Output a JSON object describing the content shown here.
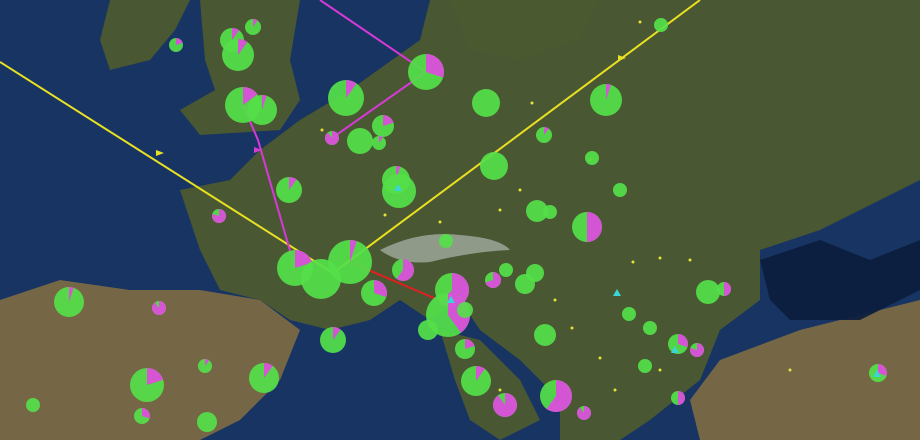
{
  "map": {
    "kind": "satellite",
    "region": "Europe",
    "colors": {
      "ocean": "#173463",
      "ocean_deep": "#0d1f3f",
      "land": "#4c5a30",
      "land_dry": "#7a6a45",
      "snow": "#d8dde0",
      "pie_primary": "#55e04a",
      "pie_secondary": "#e04adf",
      "route_yellow": "#e8e021",
      "route_magenta": "#d63ad6",
      "route_red": "#e02020",
      "point_yellow": "#e6e03a",
      "triangle_cyan": "#3ad6d6"
    },
    "marker_secondary_fractions": [
      0.1,
      0.1,
      0.1,
      0.2,
      0.15,
      0.05,
      0.1,
      0.3,
      0,
      0.05,
      0,
      0,
      0.2,
      0.9,
      0.1,
      0.1,
      0,
      0,
      0.1,
      0.05,
      0,
      0.8,
      0,
      0,
      0,
      0.5,
      0,
      0.2,
      0,
      0.05,
      0.6,
      0.3,
      0.6,
      0.4,
      0.7,
      0,
      0,
      0,
      0,
      0,
      0.5,
      0,
      0,
      0,
      0.1,
      0.2,
      0.3,
      0.8,
      0,
      0.05,
      0.9,
      0.1,
      0.1,
      0.2,
      0.1,
      0.9,
      0.6,
      0.9,
      0.5,
      0,
      0.3,
      0,
      0.3,
      0
    ]
  }
}
